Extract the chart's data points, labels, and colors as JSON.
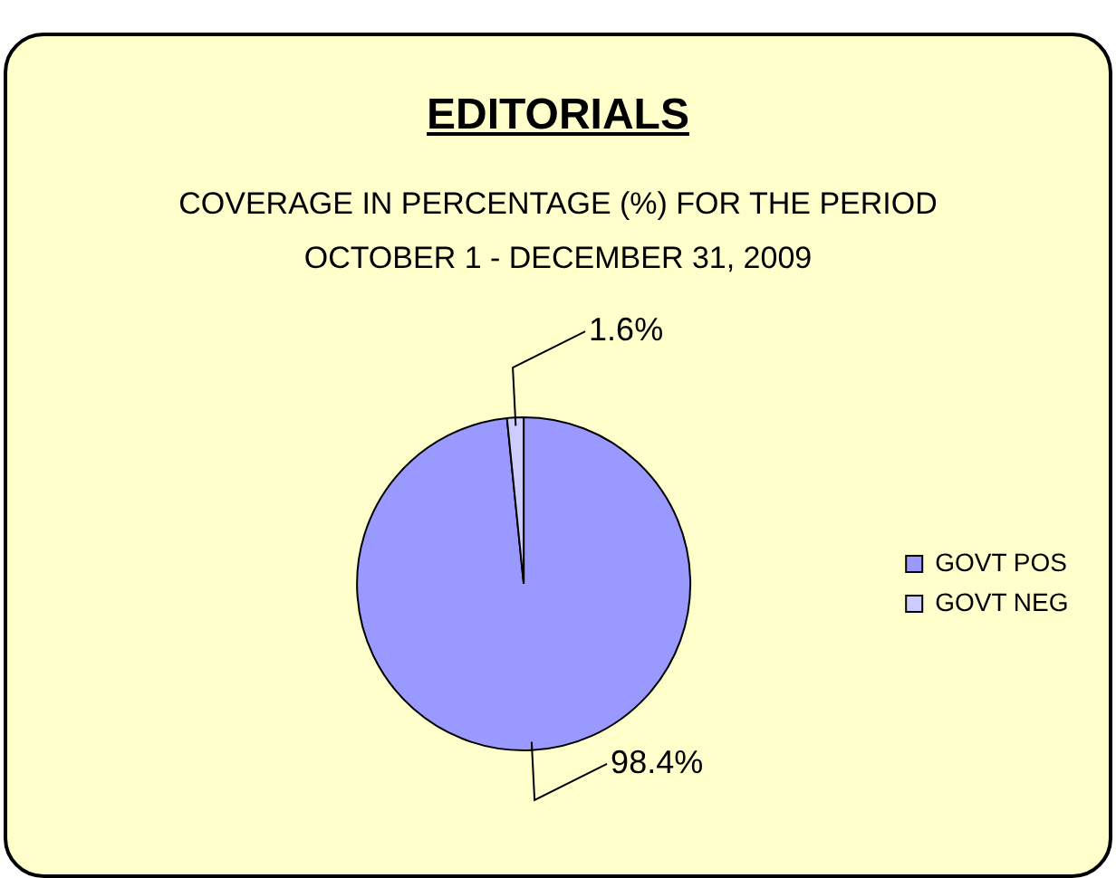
{
  "chart_data": {
    "type": "pie",
    "title": "EDITORIALS",
    "subtitle": "COVERAGE IN PERCENTAGE (%) FOR THE PERIOD\nOCTOBER 1 - DECEMBER 31, 2009",
    "categories": [
      "GOVT POS",
      "GOVT NEG"
    ],
    "values": [
      98.4,
      1.6
    ],
    "colors": [
      "#9999ff",
      "#ccccff"
    ],
    "value_labels": [
      "98.4%",
      "1.6%"
    ],
    "legend": "right"
  }
}
